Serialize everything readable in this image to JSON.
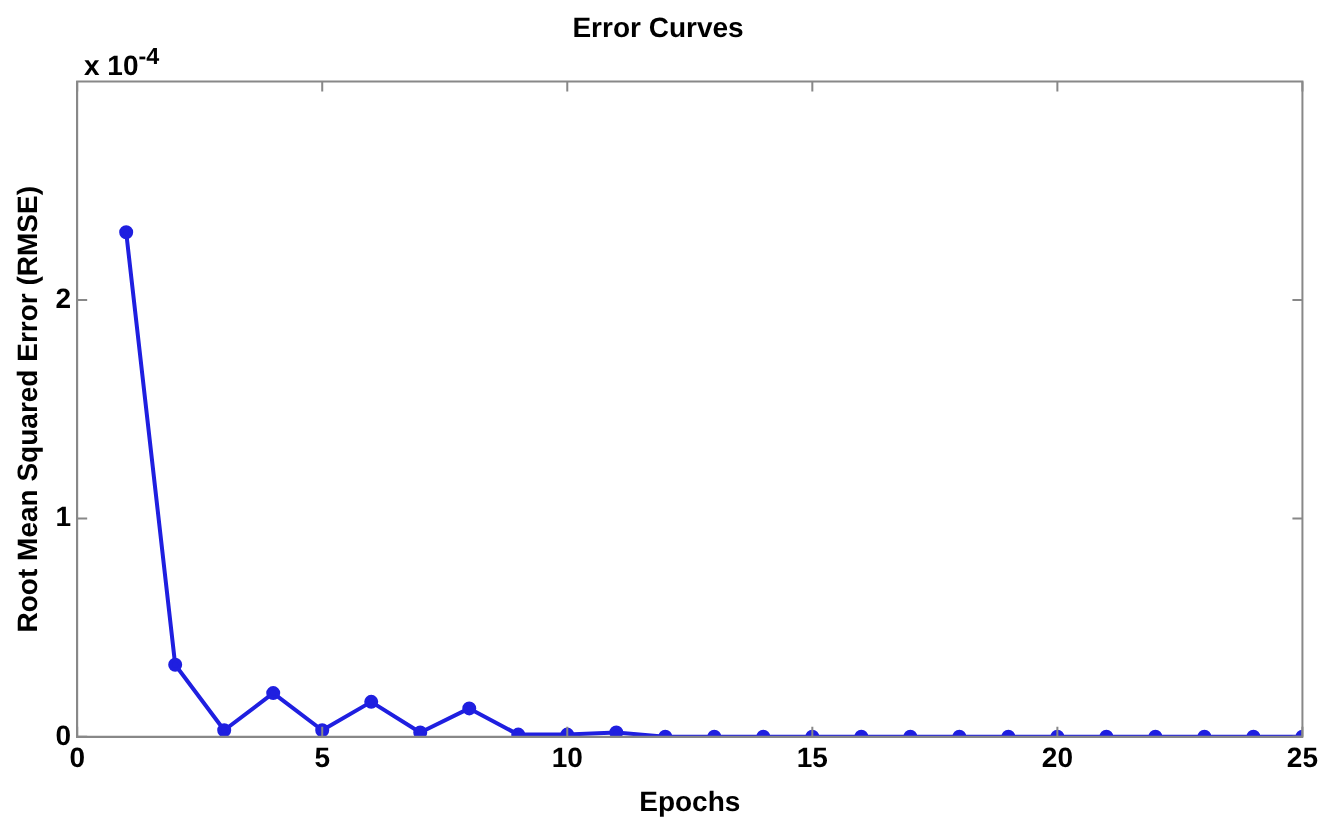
{
  "chart_data": {
    "type": "line",
    "title": "Error Curves",
    "xlabel": "Epochs",
    "ylabel": "Root Mean Squared Error (RMSE)",
    "annotations": [
      "x 10$^{-4}$"
    ],
    "x": [
      1,
      2,
      3,
      4,
      5,
      6,
      7,
      8,
      9,
      10,
      11,
      12,
      13,
      14,
      15,
      16,
      17,
      18,
      19,
      20,
      21,
      22,
      23,
      24,
      25
    ],
    "series": [
      {
        "color": "#1f1fe0",
        "values": [
          2.31,
          0.33,
          0.03,
          0.2,
          0.03,
          0.16,
          0.02,
          0.13,
          0.01,
          0.01,
          0.02,
          0,
          0,
          0,
          0,
          0,
          0,
          0,
          0,
          0,
          0,
          0,
          0,
          0,
          0
        ]
      }
    ],
    "xlim": [
      0,
      25
    ],
    "xticks": [
      0,
      5,
      10,
      15,
      20,
      25
    ],
    "ylim": [
      0,
      3
    ],
    "yticks": [
      0,
      1,
      2
    ],
    "grid": false,
    "legend": false,
    "marker": "circle",
    "line_style": "solid"
  }
}
